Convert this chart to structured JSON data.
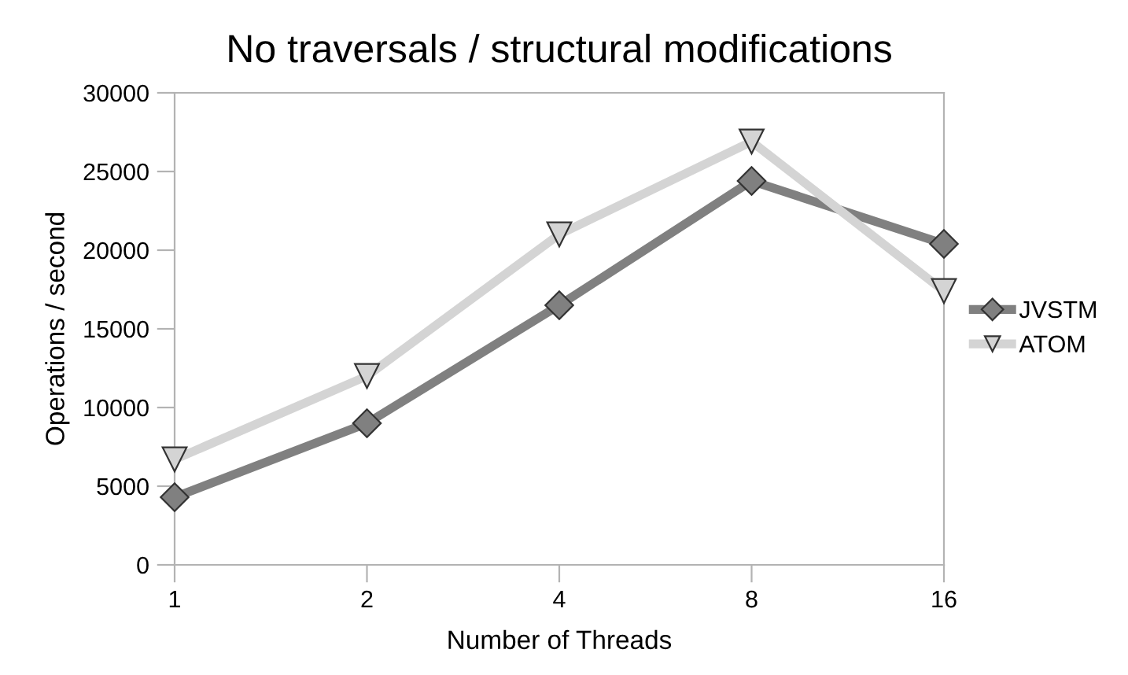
{
  "chart_data": {
    "type": "line",
    "title": "No traversals / structural modifications",
    "xlabel": "Number of Threads",
    "ylabel": "Operations / second",
    "categories": [
      "1",
      "2",
      "4",
      "8",
      "16"
    ],
    "series": [
      {
        "name": "JVSTM",
        "color": "#808080",
        "marker": "diamond",
        "values": [
          4300,
          9000,
          16500,
          24400,
          20400
        ]
      },
      {
        "name": "ATOM",
        "color": "#d4d4d4",
        "marker": "triangle",
        "values": [
          6700,
          12000,
          21000,
          26900,
          17400
        ]
      }
    ],
    "ylim": [
      0,
      30000
    ],
    "yticks": [
      0,
      5000,
      10000,
      15000,
      20000,
      25000,
      30000
    ],
    "grid": false,
    "legend": "right"
  }
}
